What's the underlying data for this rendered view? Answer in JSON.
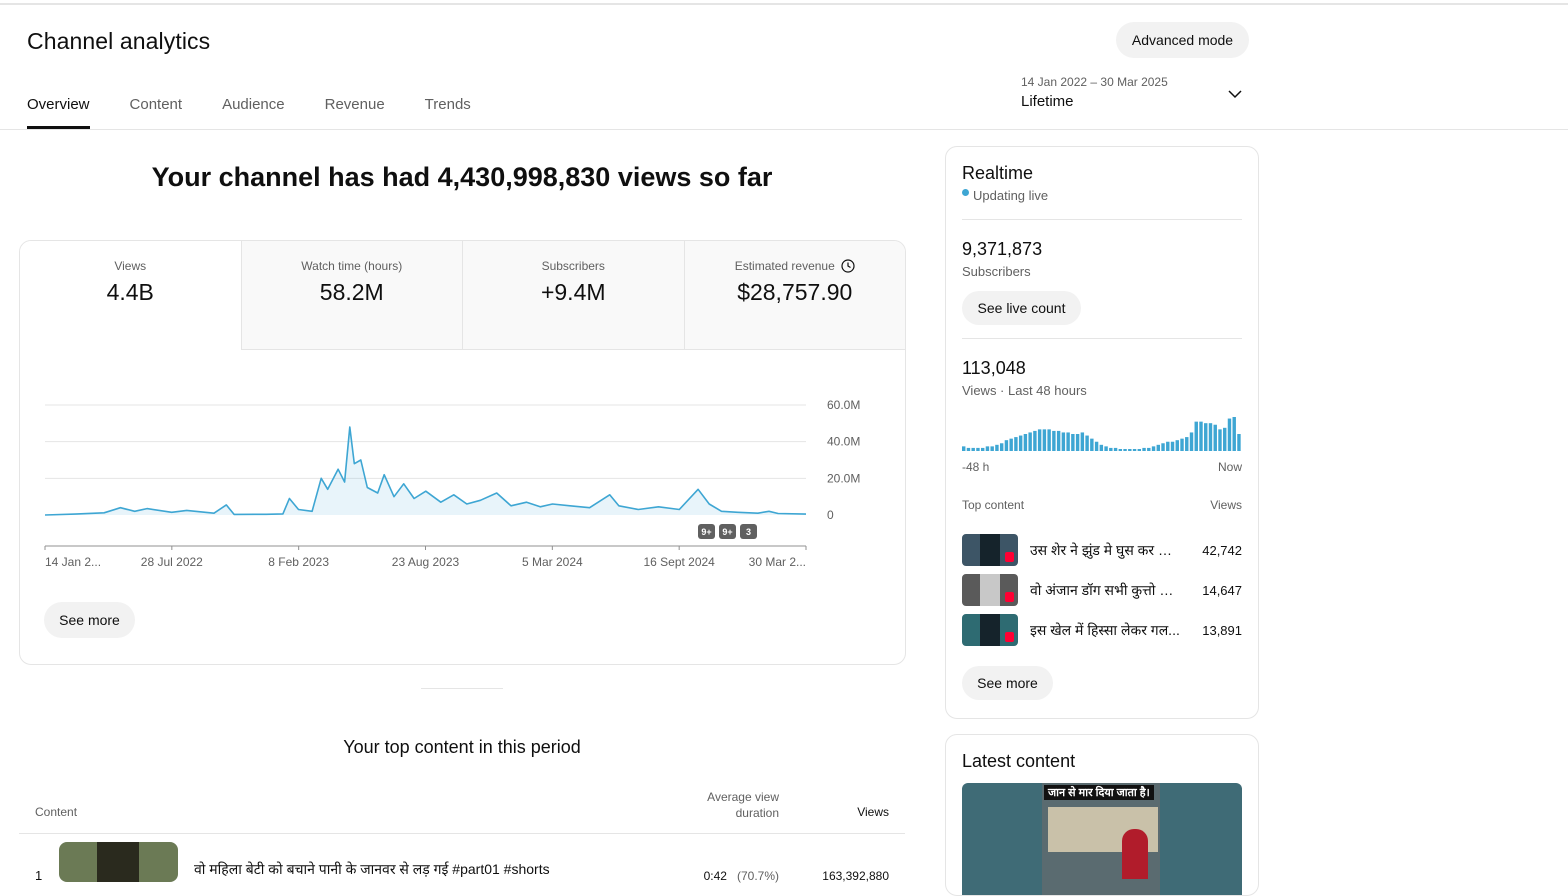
{
  "header": {
    "title": "Channel analytics",
    "advanced_mode": "Advanced mode",
    "tabs": [
      "Overview",
      "Content",
      "Audience",
      "Revenue",
      "Trends"
    ],
    "active_tab": "Overview",
    "date_range": "14 Jan 2022 – 30 Mar 2025",
    "date_label": "Lifetime"
  },
  "headline": "Your channel has had 4,430,998,830 views so far",
  "metrics": [
    {
      "label": "Views",
      "value": "4.4B"
    },
    {
      "label": "Watch time (hours)",
      "value": "58.2M"
    },
    {
      "label": "Subscribers",
      "value": "+9.4M"
    },
    {
      "label": "Estimated revenue",
      "value": "$28,757.90"
    }
  ],
  "chart_data": {
    "type": "area",
    "x_tick_labels": [
      "14 Jan 2...",
      "28 Jul 2022",
      "8 Feb 2023",
      "23 Aug 2023",
      "5 Mar 2024",
      "16 Sept 2024",
      "30 Mar 2..."
    ],
    "y_tick_labels": [
      "60.0M",
      "40.0M",
      "20.0M",
      "0"
    ],
    "ylim": [
      0,
      60000000
    ],
    "x_start": "14 Jan 2022",
    "x_end": "30 Mar 2025",
    "color": "#3ea6d3",
    "grid": true,
    "series": [
      {
        "points": [
          [
            "14 Jan 2022",
            0
          ],
          [
            "1 Mar 2022",
            500000
          ],
          [
            "15 Apr 2022",
            1200000
          ],
          [
            "10 May 2022",
            4000000
          ],
          [
            "1 Jun 2022",
            2000000
          ],
          [
            "20 Jun 2022",
            3500000
          ],
          [
            "28 Jul 2022",
            1500000
          ],
          [
            "20 Aug 2022",
            2500000
          ],
          [
            "1 Oct 2022",
            1000000
          ],
          [
            "20 Oct 2022",
            5500000
          ],
          [
            "1 Nov 2022",
            300000
          ],
          [
            "20 Dec 2022",
            400000
          ],
          [
            "15 Jan 2023",
            600000
          ],
          [
            "25 Jan 2023",
            9000000
          ],
          [
            "8 Feb 2023",
            3000000
          ],
          [
            "1 Mar 2023",
            2000000
          ],
          [
            "15 Mar 2023",
            20000000
          ],
          [
            "25 Mar 2023",
            14000000
          ],
          [
            "10 Apr 2023",
            25000000
          ],
          [
            "20 Apr 2023",
            18000000
          ],
          [
            "28 Apr 2023",
            48000000
          ],
          [
            "5 May 2023",
            28000000
          ],
          [
            "15 May 2023",
            30000000
          ],
          [
            "25 May 2023",
            15000000
          ],
          [
            "10 Jun 2023",
            12000000
          ],
          [
            "20 Jun 2023",
            22000000
          ],
          [
            "5 Jul 2023",
            10000000
          ],
          [
            "20 Jul 2023",
            17000000
          ],
          [
            "5 Aug 2023",
            9000000
          ],
          [
            "23 Aug 2023",
            13000000
          ],
          [
            "15 Sep 2023",
            7000000
          ],
          [
            "5 Oct 2023",
            11000000
          ],
          [
            "25 Oct 2023",
            6000000
          ],
          [
            "15 Nov 2023",
            8000000
          ],
          [
            "10 Dec 2023",
            12000000
          ],
          [
            "1 Jan 2024",
            5000000
          ],
          [
            "25 Jan 2024",
            7000000
          ],
          [
            "15 Feb 2024",
            4500000
          ],
          [
            "5 Mar 2024",
            6000000
          ],
          [
            "1 Apr 2024",
            5000000
          ],
          [
            "1 May 2024",
            4000000
          ],
          [
            "1 Jun 2024",
            11000000
          ],
          [
            "15 Jun 2024",
            5000000
          ],
          [
            "15 Jul 2024",
            3000000
          ],
          [
            "15 Aug 2024",
            4500000
          ],
          [
            "16 Sep 2024",
            3000000
          ],
          [
            "15 Oct 2024",
            14000000
          ],
          [
            "1 Nov 2024",
            6000000
          ],
          [
            "20 Nov 2024",
            2000000
          ],
          [
            "15 Dec 2024",
            1500000
          ],
          [
            "15 Jan 2025",
            1000000
          ],
          [
            "1 Feb 2025",
            2000000
          ],
          [
            "15 Feb 2025",
            800000
          ],
          [
            "30 Mar 2025",
            500000
          ]
        ]
      }
    ],
    "annotation_badges": [
      "9+",
      "9+",
      "3"
    ]
  },
  "see_more": "See more",
  "top_content": {
    "title": "Your top content in this period",
    "col_content": "Content",
    "col_avd": "Average view duration",
    "col_views": "Views",
    "rows": [
      {
        "num": "1",
        "title": "वो महिला बेटी को बचाने पानी के जानवर से लड़ गई #part01 #shorts",
        "avd": "0:42",
        "avd_pct": "(70.7%)",
        "views": "163,392,880"
      }
    ]
  },
  "realtime": {
    "title": "Realtime",
    "live": "Updating live",
    "subscribers_value": "9,371,873",
    "subscribers_label": "Subscribers",
    "see_live_count": "See live count",
    "views_value": "113,048",
    "views_label": "Views · Last 48 hours",
    "axis_start": "-48 h",
    "axis_end": "Now",
    "bar_values": [
      3,
      2,
      2,
      2,
      2,
      3,
      3,
      4,
      5,
      7,
      8,
      9,
      10,
      11,
      12,
      13,
      14,
      14,
      14,
      13,
      13,
      12,
      12,
      11,
      11,
      12,
      10,
      8,
      6,
      4,
      3,
      2,
      2,
      1,
      1,
      1,
      1,
      1,
      2,
      2,
      3,
      4,
      5,
      6,
      6,
      7,
      8,
      9,
      12,
      19,
      19,
      18,
      18,
      17,
      14,
      15,
      21,
      22,
      11
    ],
    "top_content_label": "Top content",
    "views_col": "Views",
    "items": [
      {
        "title": "उस शेर ने झुंड मे घुस कर अ...",
        "views": "42,742"
      },
      {
        "title": "वो अंजान डॉग सभी कुत्तो पर...",
        "views": "14,647"
      },
      {
        "title": "इस खेल में हिस्सा लेकर गल...",
        "views": "13,891"
      }
    ],
    "see_more": "See more"
  },
  "latest": {
    "title": "Latest content",
    "thumb_caption": "जान से मार दिया जाता है।"
  }
}
